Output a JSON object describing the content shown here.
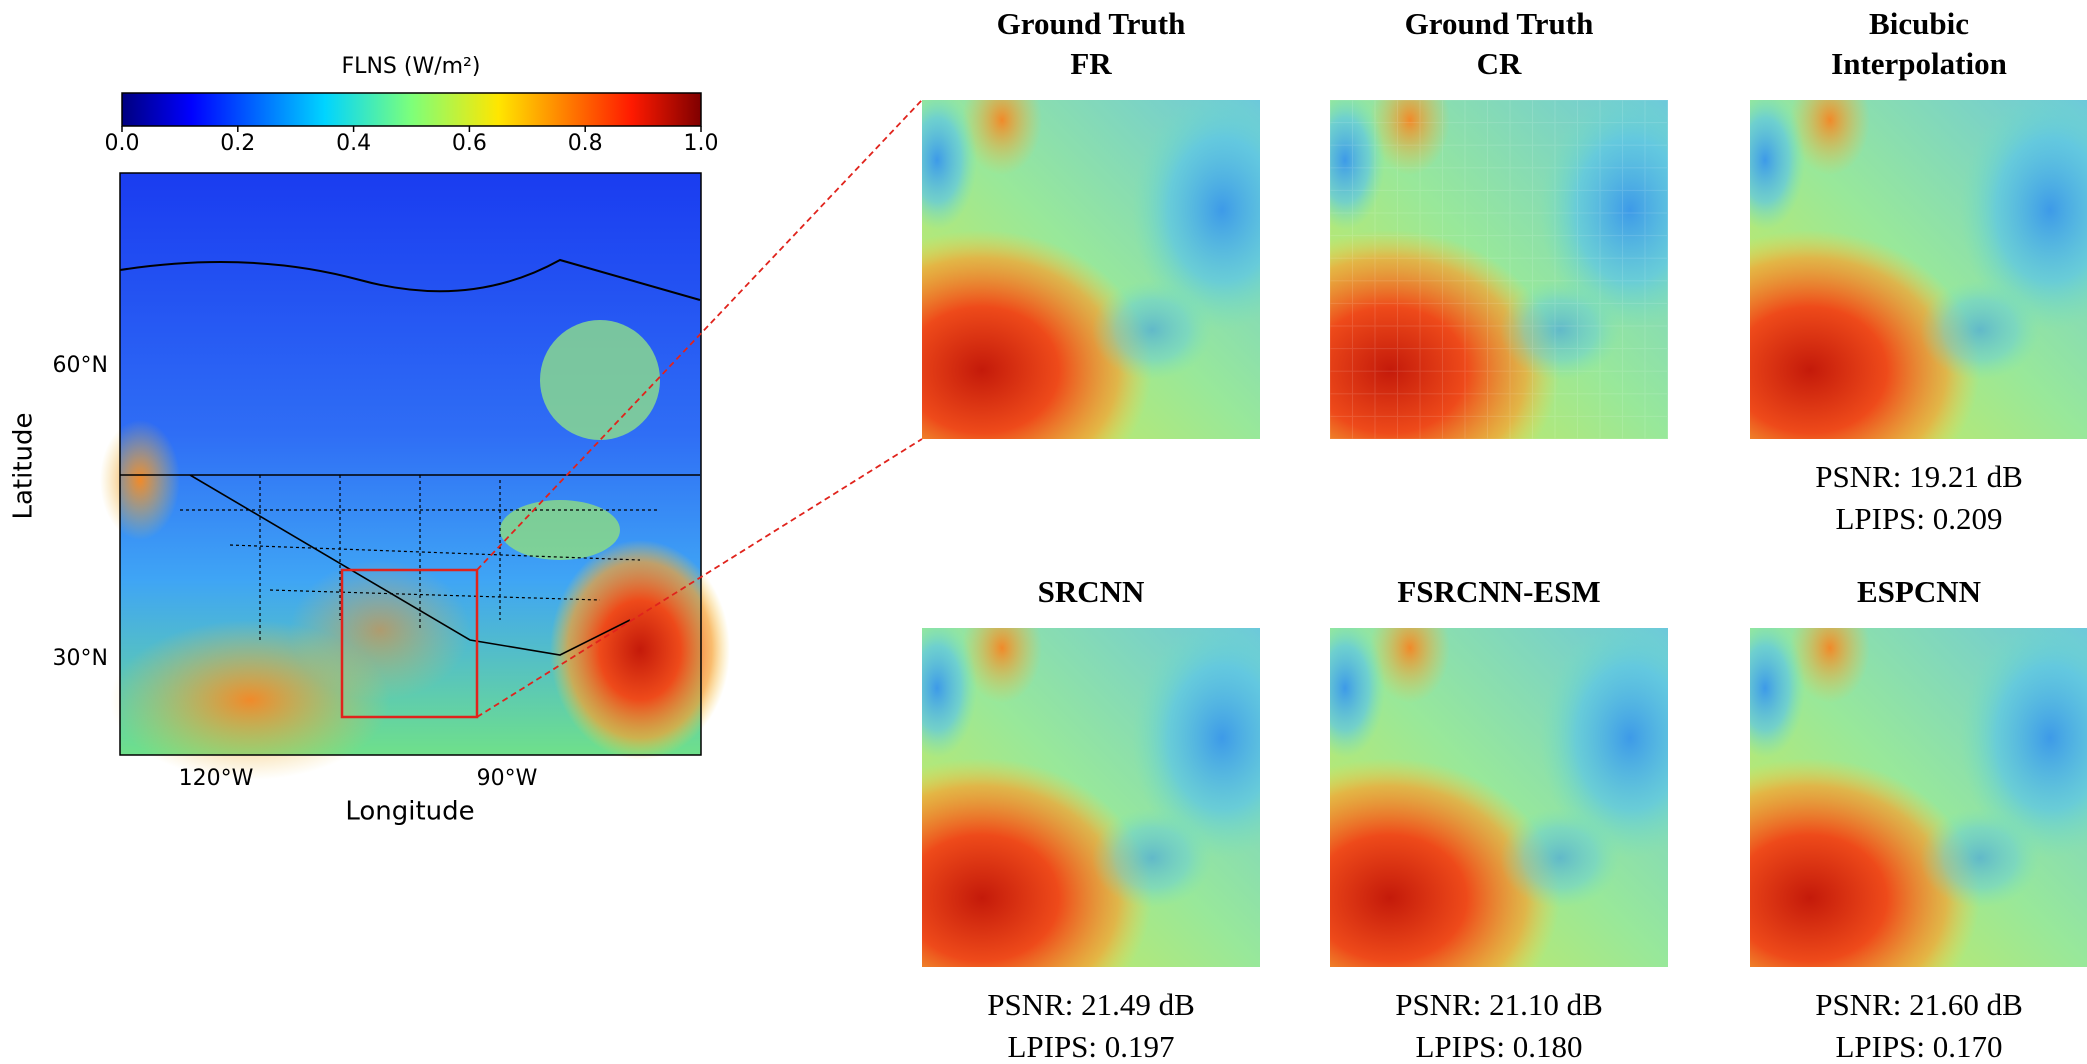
{
  "colorbar": {
    "label": "FLNS (W/m²)",
    "ticks": [
      {
        "value": 0,
        "label": "0.0"
      },
      {
        "value": 0.2,
        "label": "0.2"
      },
      {
        "value": 0.4,
        "label": "0.4"
      },
      {
        "value": 0.6,
        "label": "0.6"
      },
      {
        "value": 0.8,
        "label": "0.8"
      },
      {
        "value": 1,
        "label": "1.0"
      }
    ]
  },
  "map": {
    "xlabel": "Longitude",
    "ylabel": "Latitude",
    "xticks": [
      "120°W",
      "90°W"
    ],
    "yticks": [
      "60°N",
      "30°N"
    ]
  },
  "panels": [
    {
      "title": [
        "Ground Truth",
        "FR"
      ]
    },
    {
      "title": [
        "Ground Truth",
        "CR"
      ]
    },
    {
      "title": [
        "Bicubic",
        "Interpolation"
      ],
      "metrics": [
        "PSNR: 19.21 dB",
        "LPIPS: 0.209"
      ]
    },
    {
      "title": [
        "SRCNN"
      ],
      "metrics": [
        "PSNR: 21.49 dB",
        "LPIPS: 0.197"
      ]
    },
    {
      "title": [
        "FSRCNN-ESM"
      ],
      "metrics": [
        "PSNR: 21.10 dB",
        "LPIPS: 0.180"
      ]
    },
    {
      "title": [
        "ESPCNN"
      ],
      "metrics": [
        "PSNR: 21.60 dB",
        "LPIPS: 0.170"
      ]
    }
  ]
}
